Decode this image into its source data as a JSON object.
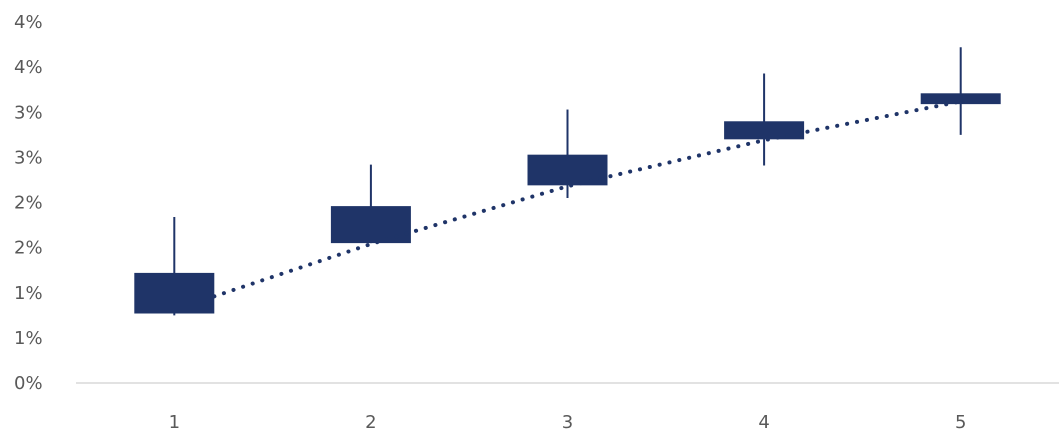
{
  "chart_data": {
    "type": "candlestick",
    "categories": [
      "1",
      "2",
      "3",
      "4",
      "5"
    ],
    "y_tick_labels": [
      "0%",
      "1%",
      "1%",
      "2%",
      "2%",
      "3%",
      "3%",
      "4%",
      "4%"
    ],
    "y_tick_values": [
      0,
      0.5,
      1.0,
      1.5,
      2.0,
      2.5,
      3.0,
      3.5,
      4.0
    ],
    "ylim": [
      0,
      4.0
    ],
    "grid": false,
    "series": [
      {
        "values": [
          {
            "open": 0.77,
            "close": 1.22,
            "high": 1.84,
            "low": 0.75
          },
          {
            "open": 1.55,
            "close": 1.96,
            "high": 2.42,
            "low": 1.55
          },
          {
            "open": 2.19,
            "close": 2.53,
            "high": 3.03,
            "low": 2.05
          },
          {
            "open": 2.7,
            "close": 2.9,
            "high": 3.43,
            "low": 2.41
          },
          {
            "open": 3.09,
            "close": 3.21,
            "high": 3.72,
            "low": 2.75
          }
        ]
      }
    ],
    "trendline": {
      "style": "dotted",
      "values": [
        0.96,
        1.54,
        2.18,
        2.69,
        3.12
      ]
    },
    "colors": {
      "candle": "#1f3468",
      "trendline": "#1f3468",
      "axis": "#d9d9d9",
      "text": "#595959"
    }
  }
}
